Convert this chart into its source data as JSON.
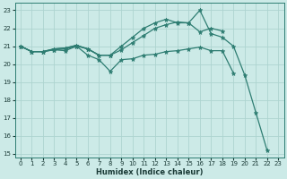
{
  "xlabel": "Humidex (Indice chaleur)",
  "bg_color": "#cceae7",
  "grid_color": "#add4d0",
  "line_color": "#2e7d72",
  "xlim": [
    -0.5,
    23.5
  ],
  "ylim": [
    14.8,
    23.4
  ],
  "yticks": [
    15,
    16,
    17,
    18,
    19,
    20,
    21,
    22,
    23
  ],
  "xticks": [
    0,
    1,
    2,
    3,
    4,
    5,
    6,
    7,
    8,
    9,
    10,
    11,
    12,
    13,
    14,
    15,
    16,
    17,
    18,
    19,
    20,
    21,
    22,
    23
  ],
  "series": [
    {
      "x": [
        0,
        1,
        2,
        3,
        4,
        5,
        6,
        7,
        8,
        9,
        10,
        11,
        12,
        13,
        14,
        15,
        16,
        17,
        18,
        19,
        20,
        21,
        22
      ],
      "y": [
        21.0,
        20.7,
        20.7,
        20.85,
        20.9,
        21.05,
        20.85,
        20.5,
        20.5,
        21.0,
        21.5,
        22.0,
        22.3,
        22.5,
        22.3,
        22.3,
        23.0,
        21.7,
        21.5,
        21.0,
        19.4,
        17.3,
        15.2
      ]
    },
    {
      "x": [
        0,
        1,
        2,
        3,
        4,
        5,
        6,
        7,
        8,
        9,
        10,
        11,
        12,
        13,
        14,
        15,
        16,
        17,
        18
      ],
      "y": [
        21.0,
        20.7,
        20.7,
        20.85,
        20.9,
        21.05,
        20.85,
        20.5,
        20.5,
        20.8,
        21.2,
        21.6,
        22.0,
        22.2,
        22.35,
        22.3,
        21.8,
        22.0,
        21.85
      ]
    },
    {
      "x": [
        0,
        1,
        2,
        3,
        4,
        5,
        6,
        7,
        8,
        9,
        10,
        11,
        12,
        13,
        14,
        15,
        16,
        17,
        18,
        19
      ],
      "y": [
        21.0,
        20.7,
        20.7,
        20.8,
        20.75,
        21.0,
        20.5,
        20.25,
        19.6,
        20.25,
        20.3,
        20.5,
        20.55,
        20.7,
        20.75,
        20.85,
        20.95,
        20.75,
        20.75,
        19.5
      ]
    },
    {
      "x": [
        0,
        1,
        2,
        3,
        4,
        5,
        6,
        7,
        8
      ],
      "y": [
        21.0,
        20.7,
        20.7,
        20.8,
        20.85,
        21.0,
        20.85,
        20.5,
        20.5
      ]
    }
  ]
}
